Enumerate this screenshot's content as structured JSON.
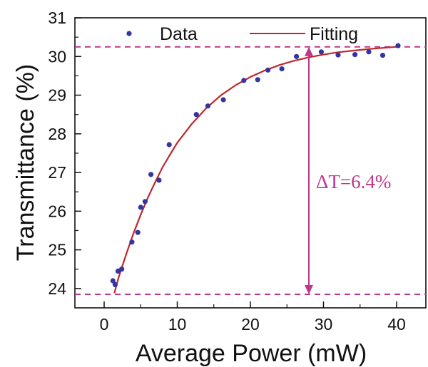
{
  "chart_data": {
    "type": "scatter",
    "xlabel": "Average Power (mW)",
    "ylabel": "Transmittance (%)",
    "xlim": [
      -4,
      44
    ],
    "ylim": [
      23.5,
      31
    ],
    "xticks": [
      "0",
      "10",
      "20",
      "30",
      "40"
    ],
    "yticks": [
      "24",
      "25",
      "26",
      "27",
      "28",
      "29",
      "30",
      "31"
    ],
    "grid": false,
    "legend_position": "top",
    "series": [
      {
        "name": "Data",
        "kind": "scatter",
        "color": "#3535a0",
        "points": [
          [
            1.2,
            24.2
          ],
          [
            1.5,
            24.1
          ],
          [
            1.9,
            24.45
          ],
          [
            2.4,
            24.5
          ],
          [
            3.8,
            25.2
          ],
          [
            4.6,
            25.45
          ],
          [
            5.0,
            26.1
          ],
          [
            5.6,
            26.25
          ],
          [
            6.4,
            26.95
          ],
          [
            7.5,
            26.8
          ],
          [
            8.9,
            27.72
          ],
          [
            12.6,
            28.5
          ],
          [
            14.2,
            28.72
          ],
          [
            16.3,
            28.88
          ],
          [
            19.1,
            29.38
          ],
          [
            21.0,
            29.4
          ],
          [
            22.4,
            29.65
          ],
          [
            24.3,
            29.68
          ],
          [
            26.3,
            30.0
          ],
          [
            29.7,
            30.12
          ],
          [
            32.0,
            30.04
          ],
          [
            34.3,
            30.05
          ],
          [
            36.2,
            30.12
          ],
          [
            38.1,
            30.03
          ],
          [
            40.2,
            30.28
          ]
        ]
      },
      {
        "name": "Fitting",
        "kind": "line",
        "color": "#c0272d",
        "points": [
          [
            1.4,
            23.88
          ],
          [
            2,
            24.3
          ],
          [
            3,
            24.88
          ],
          [
            4,
            25.42
          ],
          [
            5,
            25.91
          ],
          [
            6,
            26.36
          ],
          [
            7,
            26.76
          ],
          [
            8,
            27.14
          ],
          [
            9,
            27.46
          ],
          [
            10,
            27.77
          ],
          [
            12,
            28.26
          ],
          [
            14,
            28.67
          ],
          [
            16,
            29.0
          ],
          [
            18,
            29.26
          ],
          [
            20,
            29.47
          ],
          [
            22,
            29.64
          ],
          [
            24,
            29.78
          ],
          [
            26,
            29.89
          ],
          [
            28,
            29.98
          ],
          [
            30,
            30.05
          ],
          [
            32,
            30.11
          ],
          [
            34,
            30.15
          ],
          [
            36,
            30.19
          ],
          [
            38,
            30.22
          ],
          [
            40,
            30.25
          ]
        ]
      }
    ],
    "reference_lines": [
      {
        "axis": "y",
        "value": 30.25,
        "style": "dashed",
        "color": "#c0368a"
      },
      {
        "axis": "y",
        "value": 23.85,
        "style": "dashed",
        "color": "#c0368a"
      }
    ],
    "annotation": {
      "text": "ΔT=6.4%",
      "color": "#c0368a",
      "arrow_x": 28,
      "arrow_from": 23.85,
      "arrow_to": 30.25
    }
  }
}
